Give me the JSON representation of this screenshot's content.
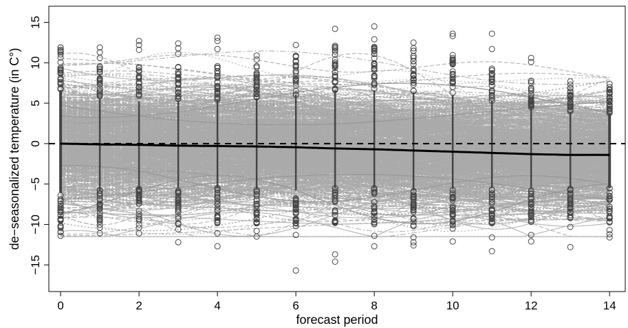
{
  "chart_data": {
    "type": "line",
    "xlabel": "forecast period",
    "ylabel": "de−seasonalized temperature (in C°)",
    "x_ticks": [
      0,
      2,
      4,
      6,
      8,
      10,
      12,
      14
    ],
    "y_ticks": [
      -15,
      -10,
      -5,
      0,
      5,
      10,
      15
    ],
    "x_tick_labels": [
      "0",
      "2",
      "4",
      "6",
      "8",
      "10",
      "12",
      "14"
    ],
    "y_tick_labels": [
      "−15",
      "−10",
      "−5",
      "0",
      "5",
      "10",
      "15"
    ],
    "xlim": [
      -0.3,
      14.4
    ],
    "ylim": [
      -18.3,
      17
    ],
    "grid": false,
    "reference_line": {
      "y": 0,
      "style": "dashed",
      "color": "#000000"
    },
    "mean_curve": {
      "x": [
        0,
        1,
        2,
        3,
        4,
        5,
        6,
        7,
        8,
        9,
        10,
        11,
        12,
        13,
        14
      ],
      "y": [
        0.0,
        -0.1,
        -0.15,
        -0.25,
        -0.3,
        -0.35,
        -0.45,
        -0.6,
        -0.7,
        -0.85,
        -1.0,
        -1.15,
        -1.3,
        -1.4,
        -1.4
      ],
      "color": "#000000"
    },
    "observation_points": [
      {
        "x": 1,
        "y": [
          11.9,
          11.3,
          10.6,
          -10.4,
          -11.1
        ]
      },
      {
        "x": 2,
        "y": [
          12.7,
          12.2,
          11.6,
          -10.4,
          -11.1
        ]
      },
      {
        "x": 3,
        "y": [
          12.4,
          11.8,
          11.1,
          -10.6,
          -12.2
        ]
      },
      {
        "x": 4,
        "y": [
          13.1,
          12.7,
          11.7,
          -11.1,
          -12.7
        ]
      },
      {
        "x": 5,
        "y": [
          10.9,
          10.4,
          -10.8,
          -11.5
        ]
      },
      {
        "x": 6,
        "y": [
          12.2,
          10.1,
          -11.3,
          -15.7
        ]
      },
      {
        "x": 7,
        "y": [
          14.2,
          12.1,
          11.4,
          -9.8,
          -13.7,
          -14.6
        ]
      },
      {
        "x": 8,
        "y": [
          14.5,
          12.9,
          11.7,
          -11.4,
          -12.7
        ]
      },
      {
        "x": 9,
        "y": [
          12.5,
          11.8,
          -11.6,
          -12.2,
          -12.6
        ]
      },
      {
        "x": 10,
        "y": [
          13.6,
          13.3,
          10.4,
          -10.5,
          -12.1
        ]
      },
      {
        "x": 11,
        "y": [
          13.6,
          11.7,
          -11.6,
          -13.3
        ]
      },
      {
        "x": 12,
        "y": [
          10.6,
          10.1,
          -11.3,
          -12.1
        ]
      },
      {
        "x": 13,
        "y": [
          7.7,
          7.3,
          -10.3,
          -12.8
        ]
      },
      {
        "x": 14,
        "y": [
          7.4,
          7.0,
          -10.7,
          -11.2,
          -11.6
        ]
      },
      {
        "x": 0,
        "y": [
          11.9,
          11.6,
          11.3,
          -10.9,
          -11.4
        ]
      }
    ],
    "scenario_band": {
      "color": "#aaaaaa",
      "upper_envelope": [
        12.0,
        10.0,
        9.5,
        9.6,
        9.8,
        10.2,
        11.0,
        12.0,
        12.0,
        11.5,
        11.0,
        9.5,
        8.0,
        7.0,
        6.8
      ],
      "lower_envelope": [
        -11.0,
        -10.5,
        -10.2,
        -10.0,
        -10.0,
        -10.2,
        -10.5,
        -10.0,
        -10.0,
        -10.5,
        -10.2,
        -10.0,
        -10.0,
        -10.0,
        -10.0
      ]
    },
    "colors": {
      "scenarios": "#aaaaaa",
      "points": "#444444",
      "mean": "#000000",
      "axis": "#000000"
    }
  }
}
